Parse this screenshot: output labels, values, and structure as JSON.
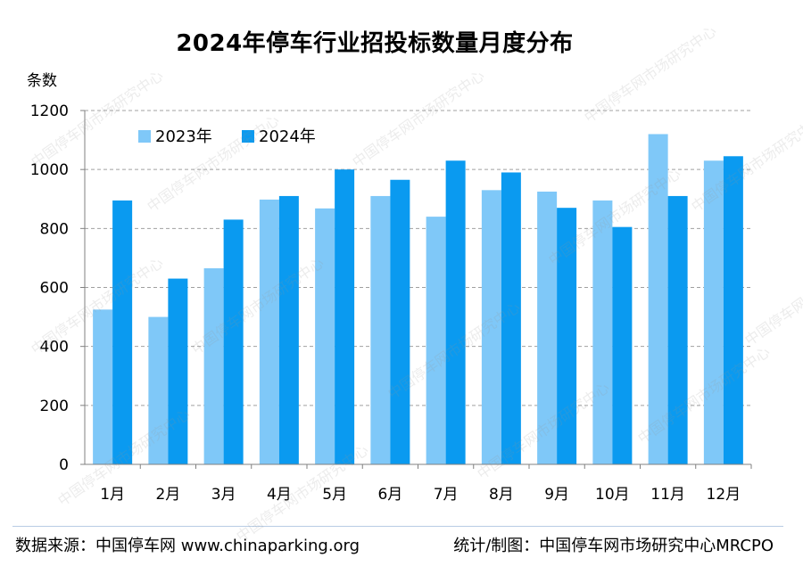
{
  "chart_data": {
    "type": "bar",
    "title": "2024年停车行业招投标数量月度分布",
    "ylabel": "条数",
    "xlabel": "",
    "ylim": [
      0,
      1200
    ],
    "yticks": [
      0,
      200,
      400,
      600,
      800,
      1000,
      1200
    ],
    "grid": true,
    "legend_position": "top-left",
    "categories": [
      "1月",
      "2月",
      "3月",
      "4月",
      "5月",
      "6月",
      "7月",
      "8月",
      "9月",
      "10月",
      "11月",
      "12月"
    ],
    "series": [
      {
        "name": "2023年",
        "color": "#7fc8f8",
        "values": [
          525,
          500,
          665,
          898,
          868,
          910,
          840,
          930,
          925,
          895,
          1120,
          1030
        ]
      },
      {
        "name": "2024年",
        "color": "#0a9af0",
        "values": [
          895,
          630,
          830,
          910,
          1000,
          965,
          1030,
          990,
          870,
          805,
          910,
          1045
        ]
      }
    ]
  },
  "footer": {
    "source": "数据来源：中国停车网 www.chinaparking.org",
    "credit": "统计/制图：中国停车网市场研究中心MRCPO"
  },
  "watermark": "中国停车网市场研究中心"
}
